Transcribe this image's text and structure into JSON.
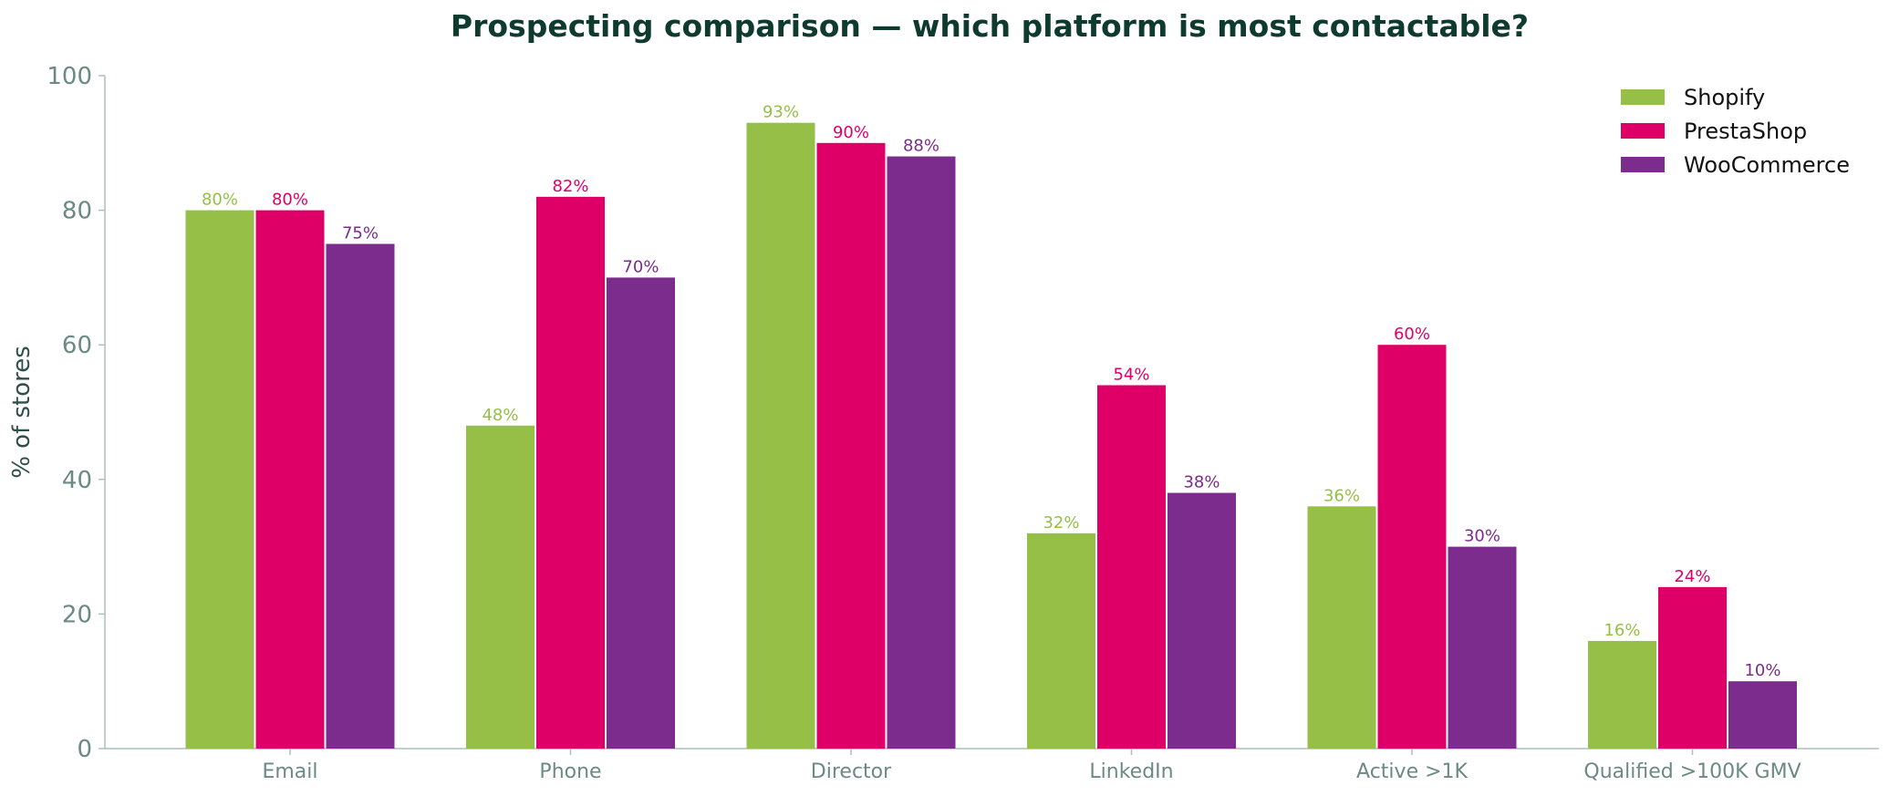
{
  "colors": {
    "title": "#0e3b2e",
    "axis": "#a9c0bc",
    "tick_text": "#6b8a83",
    "ylabel_text": "#2f4f4a"
  },
  "chart_data": {
    "type": "bar",
    "title": "Prospecting comparison — which platform is most contactable?",
    "xlabel": "",
    "ylabel": "% of stores",
    "ylim": [
      0,
      100
    ],
    "yticks": [
      0,
      20,
      40,
      60,
      80,
      100
    ],
    "categories": [
      "Email",
      "Phone",
      "Director",
      "LinkedIn",
      "Active >1K",
      "Qualified >100K GMV"
    ],
    "series": [
      {
        "name": "Shopify",
        "color": "#96bf48",
        "values": [
          80,
          48,
          93,
          32,
          36,
          16
        ],
        "labels": [
          "80%",
          "48%",
          "93%",
          "32%",
          "36%",
          "16%"
        ]
      },
      {
        "name": "PrestaShop",
        "color": "#df0067",
        "values": [
          80,
          82,
          90,
          54,
          60,
          24
        ],
        "labels": [
          "80%",
          "82%",
          "90%",
          "54%",
          "60%",
          "24%"
        ]
      },
      {
        "name": "WooCommerce",
        "color": "#7b2c8c",
        "values": [
          75,
          70,
          88,
          38,
          30,
          10
        ],
        "labels": [
          "75%",
          "70%",
          "88%",
          "38%",
          "30%",
          "10%"
        ]
      }
    ],
    "grid": false,
    "legend": "top-right"
  }
}
